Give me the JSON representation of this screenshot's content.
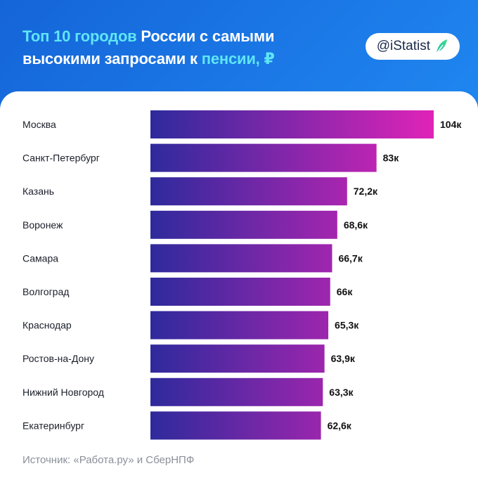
{
  "header": {
    "title_part1": "Топ 10 городов",
    "title_part2": " России с самыми высокими запросами к ",
    "title_part3": "пенсии",
    "title_part4": ", ₽",
    "brand": "@iStatist",
    "brand_icon": "feather-icon",
    "colors": {
      "background": "#1a78e6",
      "highlight": "#5fe6f5"
    }
  },
  "chart_data": {
    "type": "bar",
    "orientation": "horizontal",
    "categories": [
      "Москва",
      "Санкт-Петербург",
      "Казань",
      "Воронеж",
      "Самара",
      "Волгоград",
      "Краснодар",
      "Ростов-на-Дону",
      "Нижний Новгород",
      "Екатеринбург"
    ],
    "values": [
      104,
      83,
      72.2,
      68.6,
      66.7,
      66,
      65.3,
      63.9,
      63.3,
      62.6
    ],
    "value_labels": [
      "104к",
      "83к",
      "72,2к",
      "68,6к",
      "66,7к",
      "66к",
      "65,3к",
      "63,9к",
      "63,3к",
      "62,6к"
    ],
    "title": "Топ 10 городов России с самыми высокими запросами к пенсии, ₽",
    "xlabel": "",
    "ylabel": "",
    "grid": false,
    "colors": {
      "bar_start": "#2e2a9c",
      "bar_end": "#e023b8"
    }
  },
  "footer": {
    "source": "Источник: «Работа.ру» и СберНПФ"
  }
}
